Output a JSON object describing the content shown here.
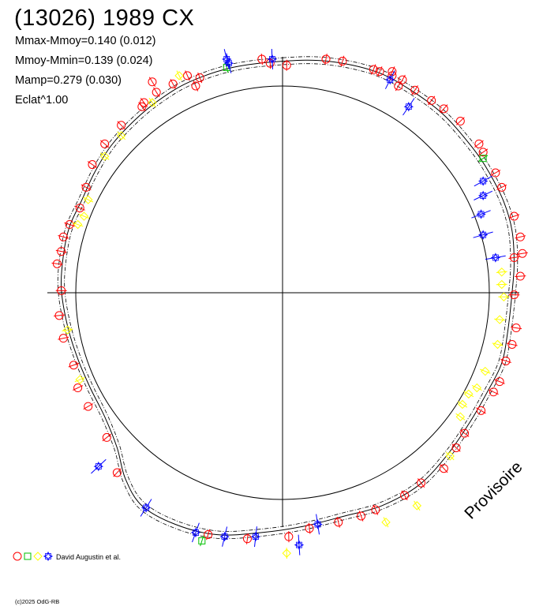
{
  "title": "(13026) 1989 CX",
  "stats": [
    "Mmax-Mmoy=0.140 (0.012)",
    "Mmoy-Mmin=0.139 (0.024)",
    "Mamp=0.279 (0.030)",
    "Eclat^1.00"
  ],
  "watermark": "Provisoire",
  "legend": {
    "observer": "David Augustin et al.",
    "symbols": [
      "circle",
      "square",
      "diamond",
      "star"
    ],
    "colors": [
      "#ff0000",
      "#00c000",
      "#ffff00",
      "#0000ff"
    ]
  },
  "copyright": "(c)2025 OdG-RB",
  "chart_data": {
    "type": "scatter",
    "projection": "polar lightcurve",
    "reference_circle_radius": 1.0,
    "axes": "horizontal and vertical through origin",
    "series": [
      {
        "symbol": "circle",
        "color": "#ff0000",
        "points": [
          [
            -0.1,
            1.13
          ],
          [
            -0.06,
            1.11
          ],
          [
            0.02,
            1.1
          ],
          [
            0.21,
            1.13
          ],
          [
            0.29,
            1.12
          ],
          [
            0.44,
            1.08
          ],
          [
            0.53,
            1.05
          ],
          [
            0.58,
            1.03
          ],
          [
            0.56,
            1.0
          ],
          [
            0.64,
            0.98
          ],
          [
            0.72,
            0.93
          ],
          [
            0.78,
            0.89
          ],
          [
            0.86,
            0.83
          ],
          [
            0.95,
            0.72
          ],
          [
            0.97,
            0.68
          ],
          [
            1.03,
            0.58
          ],
          [
            1.06,
            0.51
          ],
          [
            1.12,
            0.37
          ],
          [
            1.15,
            0.27
          ],
          [
            1.16,
            0.19
          ],
          [
            1.12,
            0.17
          ],
          [
            1.15,
            0.08
          ],
          [
            1.12,
            -0.01
          ],
          [
            1.13,
            -0.17
          ],
          [
            1.11,
            -0.25
          ],
          [
            1.08,
            -0.33
          ],
          [
            1.05,
            -0.43
          ],
          [
            1.02,
            -0.48
          ],
          [
            0.96,
            -0.57
          ],
          [
            0.88,
            -0.68
          ],
          [
            0.84,
            -0.75
          ],
          [
            0.78,
            -0.85
          ],
          [
            0.67,
            -0.92
          ],
          [
            0.59,
            -0.98
          ],
          [
            0.45,
            -1.05
          ],
          [
            0.38,
            -1.08
          ],
          [
            0.27,
            -1.11
          ],
          [
            0.13,
            -1.14
          ],
          [
            0.03,
            -1.18
          ],
          [
            -0.17,
            -1.19
          ],
          [
            -0.36,
            -1.17
          ],
          [
            -0.8,
            -0.87
          ],
          [
            -0.85,
            -0.7
          ],
          [
            -0.94,
            -0.55
          ],
          [
            -0.99,
            -0.46
          ],
          [
            -1.01,
            -0.35
          ],
          [
            -1.06,
            -0.22
          ],
          [
            -1.08,
            -0.11
          ],
          [
            -1.07,
            0.01
          ],
          [
            -1.09,
            0.14
          ],
          [
            -1.07,
            0.2
          ],
          [
            -1.06,
            0.27
          ],
          [
            -1.03,
            0.33
          ],
          [
            -0.98,
            0.41
          ],
          [
            -0.95,
            0.51
          ],
          [
            -0.92,
            0.62
          ],
          [
            -0.86,
            0.72
          ],
          [
            -0.78,
            0.81
          ],
          [
            -0.68,
            0.9
          ],
          [
            -0.67,
            0.92
          ],
          [
            -0.61,
            0.97
          ],
          [
            -0.53,
            1.01
          ],
          [
            -0.46,
            1.05
          ],
          [
            -0.4,
            1.04
          ],
          [
            -0.63,
            1.02
          ],
          [
            -0.42,
            1.0
          ],
          [
            0.47,
            1.07
          ],
          [
            0.53,
            1.07
          ]
        ]
      },
      {
        "symbol": "square",
        "color": "#00c000",
        "points": [
          [
            -0.27,
            1.09
          ],
          [
            0.97,
            0.65
          ],
          [
            -0.39,
            -1.2
          ]
        ]
      },
      {
        "symbol": "diamond",
        "color": "#ffff00",
        "points": [
          [
            -0.5,
            1.05
          ],
          [
            -0.63,
            0.92
          ],
          [
            -0.78,
            0.76
          ],
          [
            -0.86,
            0.66
          ],
          [
            -0.94,
            0.45
          ],
          [
            -0.96,
            0.37
          ],
          [
            -0.99,
            0.33
          ],
          [
            -1.04,
            -0.18
          ],
          [
            -0.98,
            -0.42
          ],
          [
            1.06,
            0.1
          ],
          [
            1.07,
            -0.02
          ],
          [
            1.05,
            -0.13
          ],
          [
            1.04,
            -0.25
          ],
          [
            0.98,
            -0.38
          ],
          [
            0.94,
            -0.46
          ],
          [
            0.9,
            -0.49
          ],
          [
            0.87,
            -0.54
          ],
          [
            0.86,
            -0.6
          ],
          [
            0.81,
            -0.79
          ],
          [
            0.65,
            -1.03
          ],
          [
            0.5,
            -1.11
          ],
          [
            0.02,
            -1.26
          ],
          [
            1.06,
            0.04
          ]
        ]
      },
      {
        "symbol": "star",
        "color": "#0000ff",
        "points": [
          [
            -0.27,
            1.13
          ],
          [
            -0.05,
            1.13
          ],
          [
            0.52,
            1.03
          ],
          [
            0.61,
            0.9
          ],
          [
            0.97,
            0.54
          ],
          [
            0.97,
            0.47
          ],
          [
            0.96,
            0.38
          ],
          [
            0.97,
            0.28
          ],
          [
            1.03,
            0.17
          ],
          [
            -0.89,
            -0.84
          ],
          [
            -0.66,
            -1.04
          ],
          [
            -0.42,
            -1.16
          ],
          [
            -0.28,
            -1.18
          ],
          [
            -0.13,
            -1.18
          ],
          [
            0.08,
            -1.22
          ],
          [
            0.17,
            -1.12
          ],
          [
            -0.26,
            1.11
          ]
        ]
      }
    ]
  }
}
